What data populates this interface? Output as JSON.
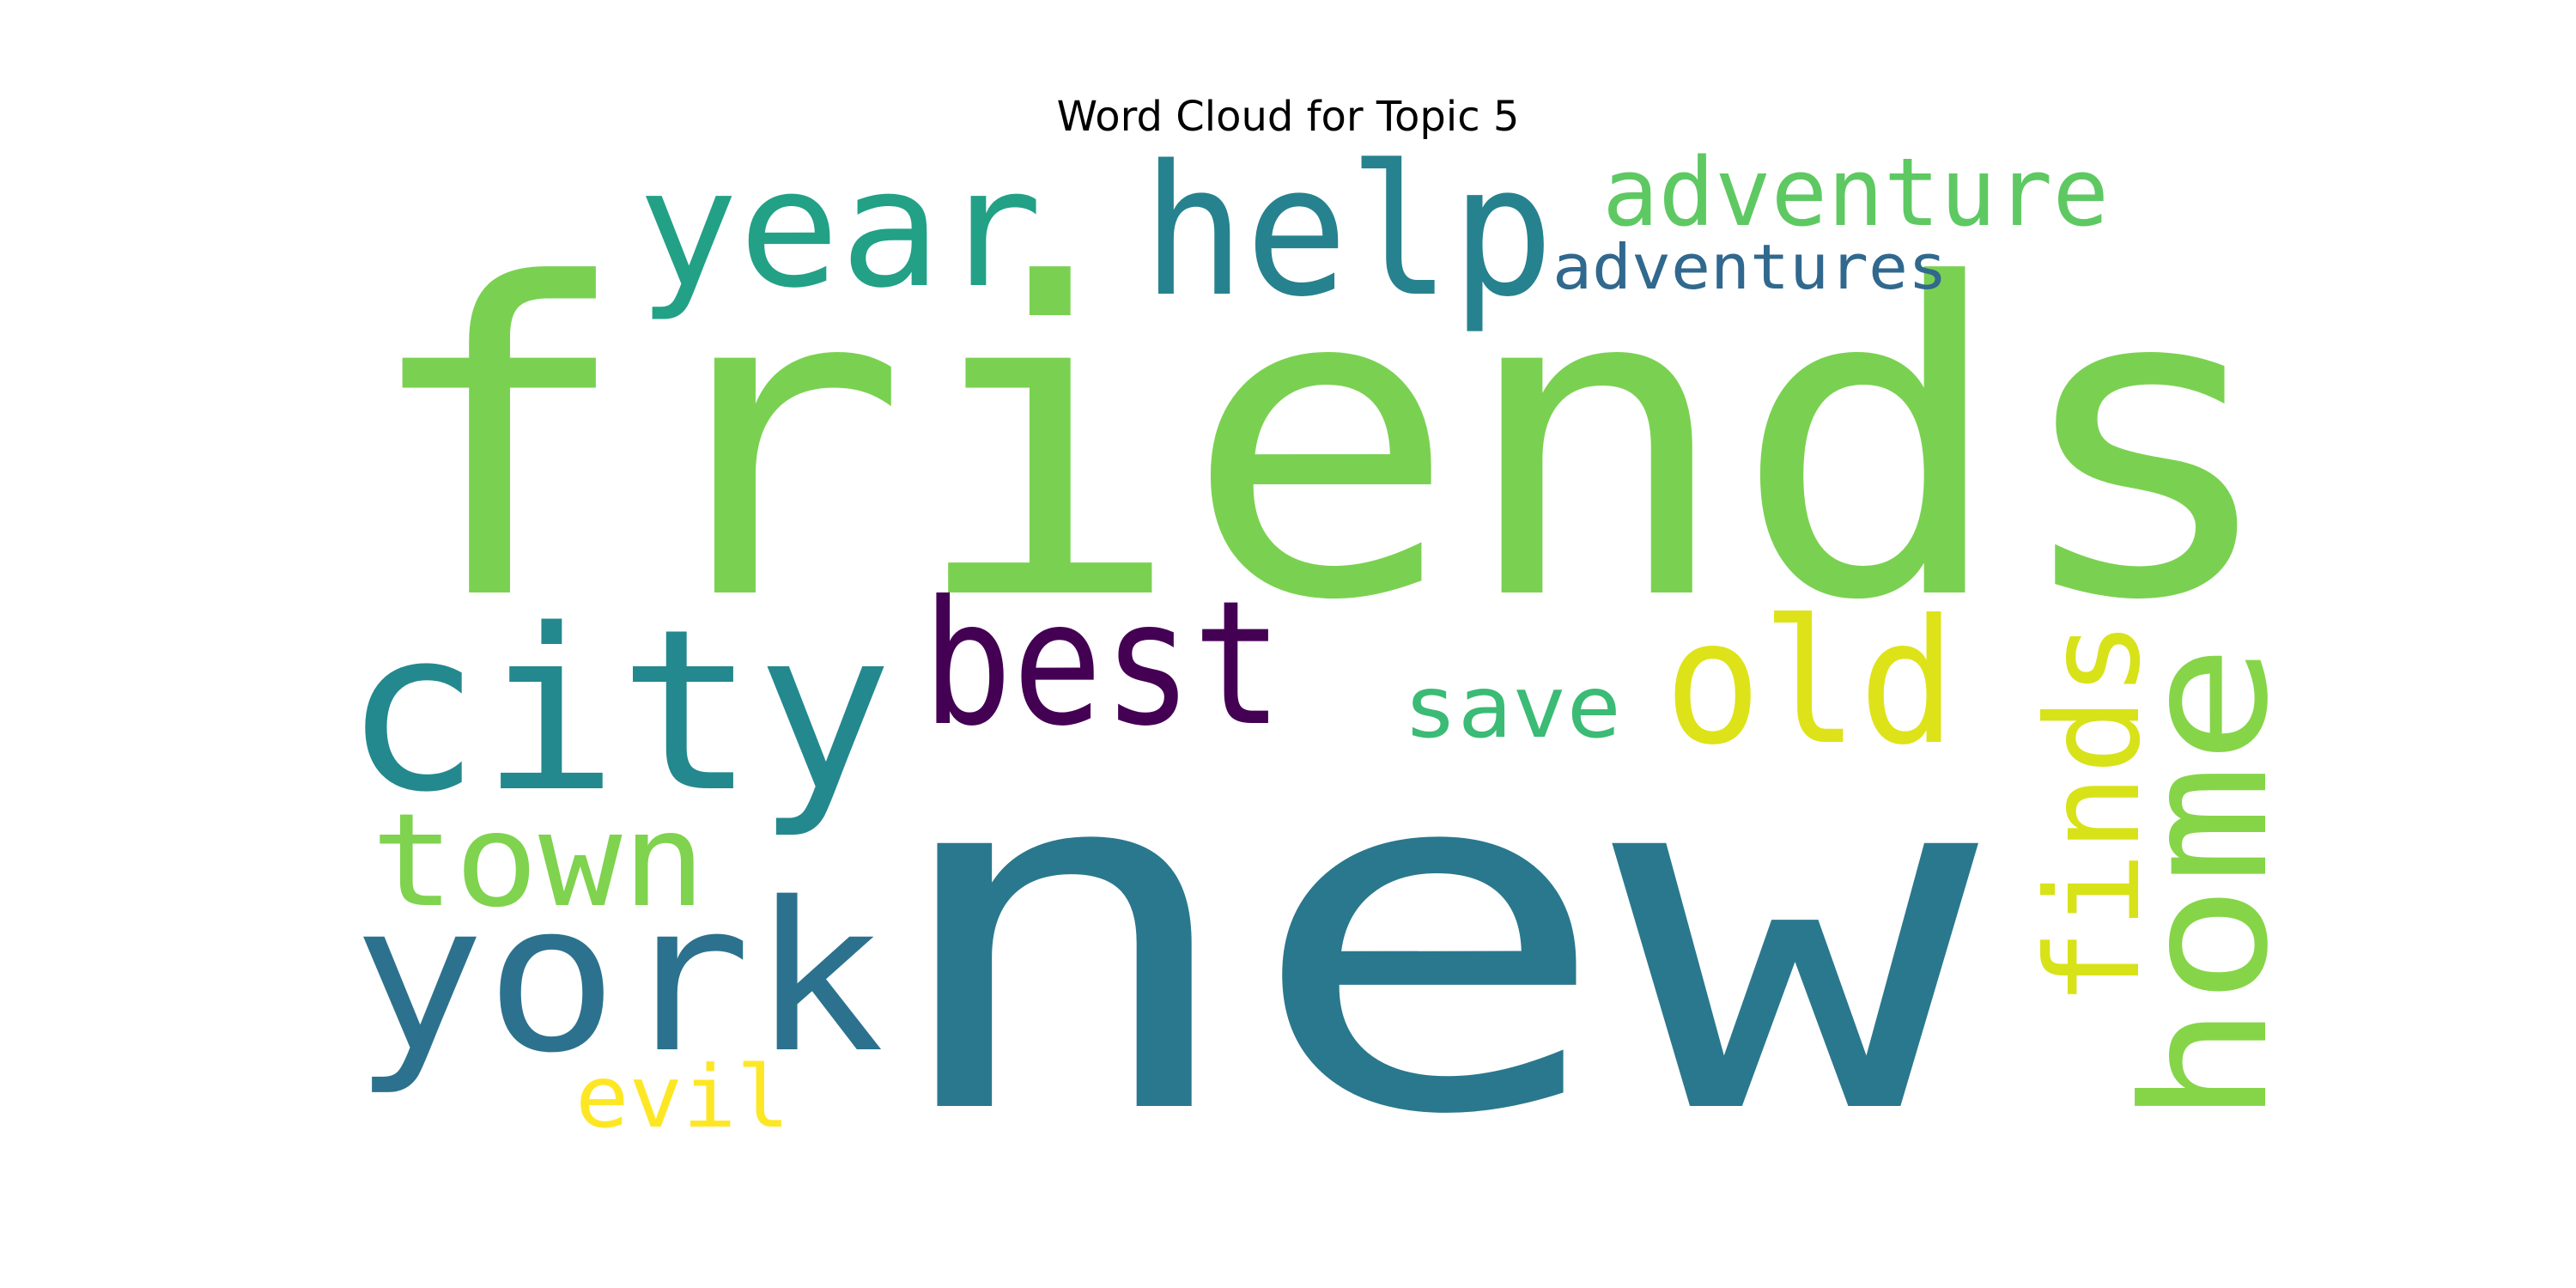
{
  "title": "Word Cloud for Topic 5",
  "background_color": "#ffffff",
  "palette_name": "viridis",
  "words": [
    {
      "text": "friends",
      "color": "#7ad151"
    },
    {
      "text": "new",
      "color": "#2a788e"
    },
    {
      "text": "city",
      "color": "#23898e"
    },
    {
      "text": "york",
      "color": "#2c728e"
    },
    {
      "text": "help",
      "color": "#26828e"
    },
    {
      "text": "year",
      "color": "#22a187"
    },
    {
      "text": "best",
      "color": "#440154"
    },
    {
      "text": "old",
      "color": "#dde318"
    },
    {
      "text": "home",
      "color": "#86d549"
    },
    {
      "text": "town",
      "color": "#7fd34e"
    },
    {
      "text": "finds",
      "color": "#d8e219"
    },
    {
      "text": "adventure",
      "color": "#5ec962"
    },
    {
      "text": "save",
      "color": "#3bbb75"
    },
    {
      "text": "adventures",
      "color": "#31688e"
    },
    {
      "text": "evil",
      "color": "#fde725"
    }
  ]
}
